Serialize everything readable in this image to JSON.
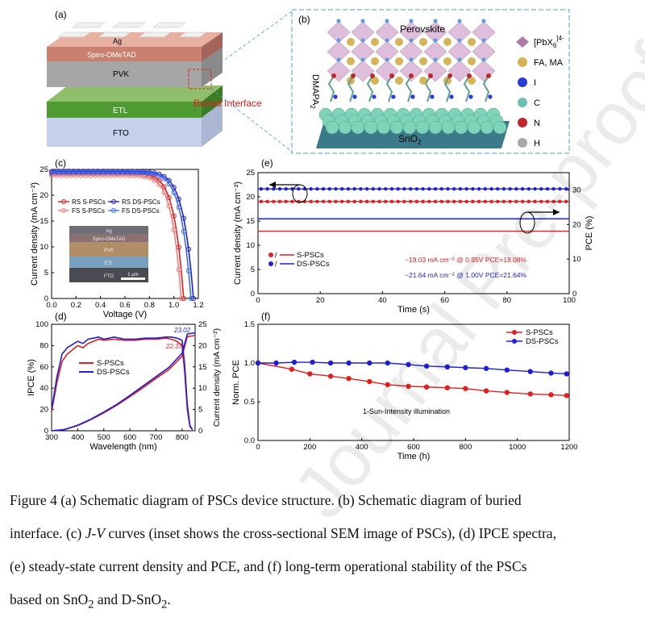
{
  "panels": {
    "a": {
      "label": "(a)",
      "layers": [
        "Ag",
        "Spiro-OMeTAD",
        "PVK",
        "ETL",
        "FTO"
      ],
      "callout": "Buried Interface"
    },
    "b": {
      "label": "(b)",
      "perovskite": "Perovskite",
      "substrate": "SnO",
      "substrate_sub": "2",
      "molecule": "DMAPA",
      "molecule_sub": "2",
      "legend": [
        {
          "label": "[PbX",
          "sub": "6",
          "sup": "]4-",
          "color": "#b07aa8"
        },
        {
          "label": "FA, MA",
          "color": "#d6b45a"
        },
        {
          "label": "I",
          "color": "#2a3cd6"
        },
        {
          "label": "C",
          "color": "#6fbfb0"
        },
        {
          "label": "N",
          "color": "#c0262a"
        },
        {
          "label": "H",
          "color": "#a8a8a8"
        }
      ]
    }
  },
  "chart_data": [
    {
      "id": "c",
      "label": "(c)",
      "type": "line",
      "xlabel": "Voltage (V)",
      "ylabel": "Current density (mA cm⁻²)",
      "xlim": [
        0,
        1.2
      ],
      "ylim": [
        0,
        25
      ],
      "xticks": [
        "0.0",
        "0.2",
        "0.4",
        "0.6",
        "0.8",
        "1.0",
        "1.2"
      ],
      "yticks": [
        "0",
        "5",
        "10",
        "15",
        "20",
        "25"
      ],
      "legend": [
        "RS S-PSCs",
        "FS S-PSCs",
        "RS DS-PSCs",
        "FS DS-PSCs"
      ],
      "inset": {
        "layers": [
          "Ag",
          "Spiro-OMeTAD",
          "PVK",
          "ETL",
          "FTO"
        ],
        "scale": "1 μm"
      },
      "series": [
        {
          "name": "RS S-PSCs",
          "color": "#e02020",
          "voc": 1.08,
          "jsc": 24.2
        },
        {
          "name": "FS S-PSCs",
          "color": "#f08080",
          "voc": 1.06,
          "jsc": 23.8
        },
        {
          "name": "RS DS-PSCs",
          "color": "#1f1fd8",
          "voc": 1.16,
          "jsc": 24.6
        },
        {
          "name": "FS DS-PSCs",
          "color": "#3f6fe8",
          "voc": 1.14,
          "jsc": 24.4
        }
      ]
    },
    {
      "id": "d",
      "label": "(d)",
      "type": "line",
      "xlabel": "Wavelength (nm)",
      "ylabel": "IPCE (%)",
      "ylabel2": "Current density (mA cm⁻²)",
      "xlim": [
        300,
        850
      ],
      "ylim": [
        0,
        100
      ],
      "ylim2": [
        0,
        25
      ],
      "xticks": [
        "300",
        "400",
        "500",
        "600",
        "700",
        "800"
      ],
      "yticks": [
        "0",
        "20",
        "40",
        "60",
        "80",
        "100"
      ],
      "yticks2": [
        "0",
        "5",
        "10",
        "15",
        "20",
        "25"
      ],
      "legend": [
        "S-PSCs",
        "DS-PSCs"
      ],
      "annotations": [
        "23.02",
        "22.37"
      ],
      "series": [
        {
          "name": "S-PSCs",
          "color": "#e02020",
          "x": [
            300,
            320,
            340,
            360,
            380,
            400,
            420,
            440,
            460,
            480,
            500,
            540,
            580,
            620,
            660,
            700,
            740,
            760,
            780,
            800,
            810,
            820,
            830,
            840
          ],
          "y": [
            18,
            45,
            65,
            72,
            76,
            80,
            78,
            82,
            84,
            86,
            85,
            86,
            85,
            85,
            86,
            86,
            87,
            86,
            84,
            80,
            55,
            20,
            4,
            1
          ],
          "jsc_x": [
            300,
            350,
            400,
            450,
            500,
            550,
            600,
            650,
            700,
            750,
            800,
            820,
            850
          ],
          "jsc_y": [
            0,
            0.3,
            1.2,
            2.6,
            4.2,
            6.0,
            8.0,
            10.1,
            12.3,
            14.4,
            17.5,
            22.1,
            22.37
          ]
        },
        {
          "name": "DS-PSCs",
          "color": "#1f1fd8",
          "x": [
            300,
            320,
            340,
            360,
            380,
            400,
            420,
            440,
            460,
            480,
            500,
            540,
            580,
            620,
            660,
            700,
            740,
            760,
            780,
            800,
            810,
            820,
            830,
            840
          ],
          "y": [
            20,
            50,
            72,
            78,
            81,
            84,
            82,
            86,
            87,
            88,
            86,
            88,
            86,
            86,
            87,
            87,
            88,
            88,
            87,
            85,
            62,
            25,
            5,
            1
          ],
          "jsc_x": [
            300,
            350,
            400,
            450,
            500,
            550,
            600,
            650,
            700,
            750,
            800,
            820,
            850
          ],
          "jsc_y": [
            0,
            0.3,
            1.3,
            2.7,
            4.4,
            6.2,
            8.3,
            10.5,
            12.7,
            14.9,
            18.2,
            22.7,
            23.02
          ]
        }
      ]
    },
    {
      "id": "e",
      "label": "(e)",
      "type": "line",
      "xlabel": "Time (s)",
      "ylabel": "Current density (mA cm⁻²)",
      "ylabel2": "PCE (%)",
      "xlim": [
        0,
        100
      ],
      "ylim": [
        0,
        25
      ],
      "ylim2": [
        0,
        35
      ],
      "xticks": [
        "0",
        "20",
        "40",
        "60",
        "80",
        "100"
      ],
      "yticks": [
        "0",
        "5",
        "10",
        "15",
        "20",
        "25"
      ],
      "yticks2": [
        "0",
        "10",
        "20",
        "30"
      ],
      "legend": [
        "S-PSCs",
        "DS-PSCs"
      ],
      "annotations": [
        {
          "text": "~19.03 mA cm⁻² @ 0.95V   PCE=18.08%",
          "color": "#e02020"
        },
        {
          "text": "~21.64 mA cm⁻² @ 1.00V   PCE=21.64%",
          "color": "#1f1fd8"
        }
      ],
      "series": [
        {
          "name": "S-PSCs J",
          "color": "#e02020",
          "value": 19.03,
          "axis": "left"
        },
        {
          "name": "DS-PSCs J",
          "color": "#1f1fd8",
          "value": 21.64,
          "axis": "left"
        },
        {
          "name": "S-PSCs PCE",
          "color": "#e02020",
          "value": 18.08,
          "axis": "right"
        },
        {
          "name": "DS-PSCs PCE",
          "color": "#1f1fd8",
          "value": 21.64,
          "axis": "right"
        }
      ]
    },
    {
      "id": "f",
      "label": "(f)",
      "type": "line",
      "xlabel": "Time (h)",
      "ylabel": "Norm. PCE",
      "xlim": [
        0,
        1200
      ],
      "ylim": [
        0,
        1.5
      ],
      "xticks": [
        "0",
        "200",
        "400",
        "600",
        "800",
        "1000",
        "1200"
      ],
      "yticks": [
        "0.0",
        "0.5",
        "1.0",
        "1.5"
      ],
      "legend": [
        "S-PSCs",
        "DS-PSCs"
      ],
      "annotation": "1-Sun-Intensity  illumination",
      "series": [
        {
          "name": "S-PSCs",
          "color": "#e02020",
          "x": [
            0,
            130,
            200,
            280,
            350,
            430,
            500,
            580,
            650,
            730,
            800,
            880,
            960,
            1050,
            1130,
            1190
          ],
          "y": [
            1.0,
            0.92,
            0.86,
            0.83,
            0.8,
            0.76,
            0.72,
            0.7,
            0.69,
            0.68,
            0.67,
            0.64,
            0.62,
            0.6,
            0.59,
            0.58
          ]
        },
        {
          "name": "DS-PSCs",
          "color": "#1f1fd8",
          "x": [
            0,
            70,
            140,
            210,
            280,
            350,
            430,
            500,
            580,
            650,
            730,
            800,
            880,
            960,
            1050,
            1130,
            1190
          ],
          "y": [
            1.0,
            1.0,
            1.01,
            1.01,
            1.0,
            1.0,
            1.0,
            1.0,
            0.98,
            0.96,
            0.95,
            0.94,
            0.93,
            0.91,
            0.89,
            0.87,
            0.86
          ]
        }
      ]
    }
  ],
  "caption": {
    "line1": "Figure 4 (a) Schematic diagram of PSCs device structure. (b) Schematic diagram of buried",
    "line2a": "interface. (c) ",
    "line2_italic": "J-V",
    "line2b": " curves (inset shows the cross-sectional SEM image of PSCs), (d) IPCE spectra,",
    "line3": "(e) steady-state current density and PCE, and (f) long-term operational stability of the PSCs",
    "line4a": "based on SnO",
    "line4_sub1": "2",
    "line4b": " and D-SnO",
    "line4_sub2": "2",
    "line4c": "."
  },
  "watermark": "Journal Pre-proofs"
}
